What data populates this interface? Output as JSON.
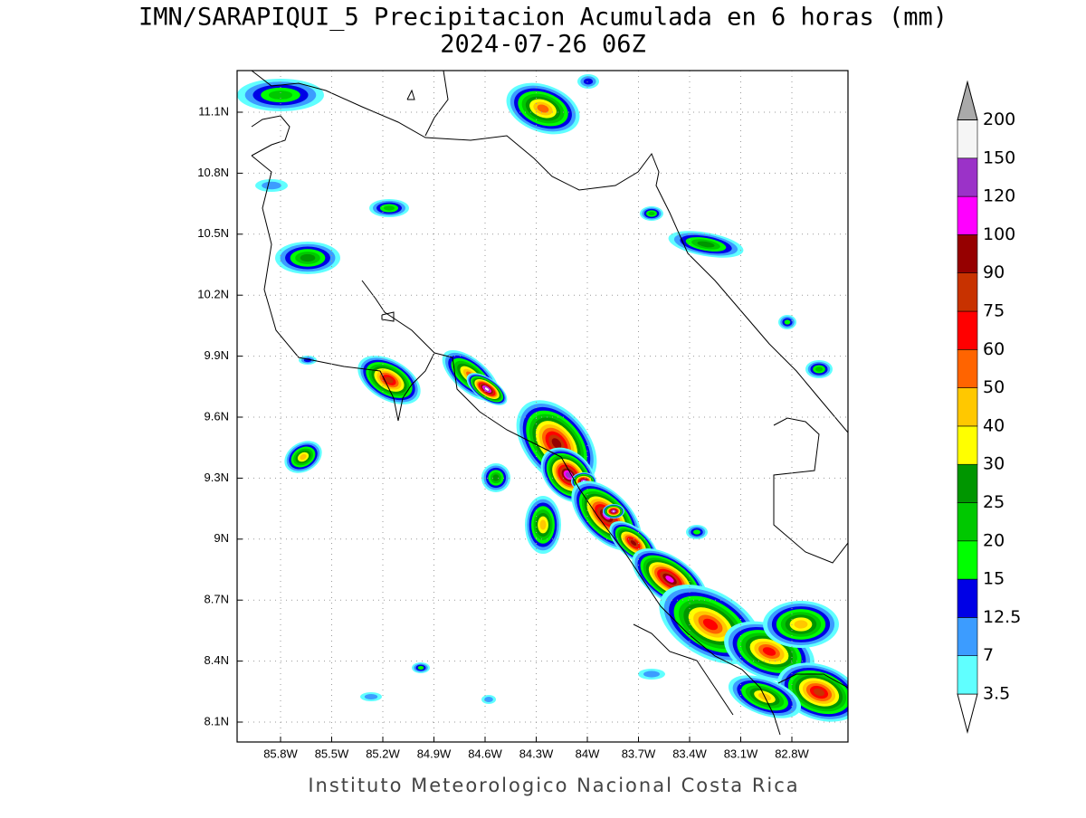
{
  "title": "IMN/SARAPIQUI_5 Precipitacion Acumulada en 6 horas (mm)",
  "subtitle": "2024-07-26 06Z",
  "map": {
    "lat_labels": [
      "11.1N",
      "10.8N",
      "10.5N",
      "10.2N",
      "9.9N",
      "9.6N",
      "9.3N",
      "9N",
      "8.7N",
      "8.4N",
      "8.1N"
    ],
    "lon_labels": [
      "85.8W",
      "85.5W",
      "85.2W",
      "84.9W",
      "84.6W",
      "84.3W",
      "84W",
      "83.7W",
      "83.4W",
      "83.1W",
      "82.8W"
    ]
  },
  "colorbar": {
    "labels": [
      "3.5",
      "7",
      "12.5",
      "15",
      "20",
      "25",
      "30",
      "40",
      "50",
      "60",
      "75",
      "90",
      "100",
      "120",
      "150",
      "200"
    ],
    "colors": [
      "#ffffff",
      "#60ffff",
      "#3c9cff",
      "#0000e6",
      "#00ff00",
      "#00c800",
      "#009600",
      "#ffff00",
      "#ffc800",
      "#ff6400",
      "#ff0000",
      "#c83200",
      "#960000",
      "#ff00ff",
      "#9b32c8",
      "#f5f5f5",
      "#aaaaaa"
    ]
  },
  "footer": "Instituto Meteorologico Nacional Costa Rica"
}
